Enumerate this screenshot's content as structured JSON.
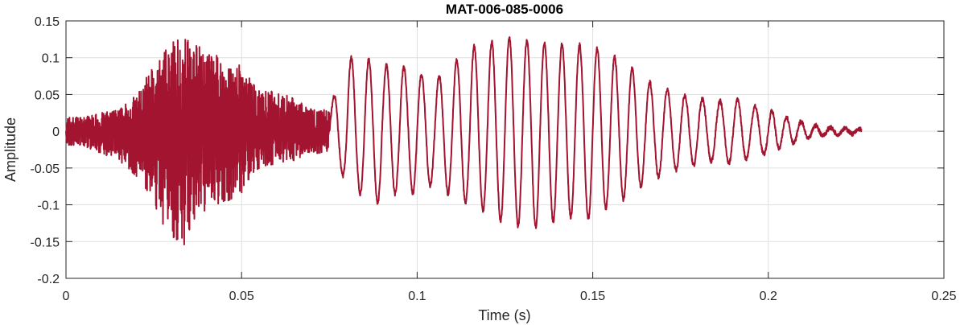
{
  "chart_data": {
    "type": "line",
    "title": "MAT-006-085-0006",
    "xlabel": "Time (s)",
    "ylabel": "Amplitude",
    "xlim": [
      0,
      0.25
    ],
    "ylim": [
      -0.2,
      0.15
    ],
    "xticks": [
      0,
      0.05,
      0.1,
      0.15,
      0.2,
      0.25
    ],
    "xtick_labels": [
      "0",
      "0.05",
      "0.1",
      "0.15",
      "0.2",
      "0.25"
    ],
    "yticks": [
      -0.2,
      -0.15,
      -0.1,
      -0.05,
      0,
      0.05,
      0.1,
      0.15
    ],
    "ytick_labels": [
      "-0.2",
      "-0.15",
      "-0.1",
      "-0.05",
      "0",
      "0.05",
      "0.1",
      "0.15"
    ],
    "grid": true,
    "line_color": "#a2142f",
    "series": [
      {
        "x": [
          0,
          0.005,
          0.01,
          0.015,
          0.02,
          0.025,
          0.03,
          0.032,
          0.035,
          0.037,
          0.04,
          0.045,
          0.05,
          0.055,
          0.06,
          0.065,
          0.07,
          0.075,
          0.08,
          0.085,
          0.09,
          0.095,
          0.1,
          0.105,
          0.11,
          0.115,
          0.12,
          0.125,
          0.13,
          0.135,
          0.14,
          0.145,
          0.15,
          0.155,
          0.16,
          0.165,
          0.17,
          0.175,
          0.18,
          0.185,
          0.19,
          0.195,
          0.2,
          0.205,
          0.21,
          0.215,
          0.22,
          0.2265
        ],
        "y_max": [
          0.02,
          0.02,
          0.025,
          0.03,
          0.05,
          0.09,
          0.12,
          0.135,
          0.13,
          0.12,
          0.11,
          0.1,
          0.09,
          0.055,
          0.055,
          0.045,
          0.03,
          0.03,
          0.1,
          0.1,
          0.09,
          0.09,
          0.08,
          0.07,
          0.09,
          0.115,
          0.12,
          0.128,
          0.125,
          0.12,
          0.118,
          0.118,
          0.115,
          0.105,
          0.09,
          0.07,
          0.06,
          0.05,
          0.045,
          0.04,
          0.045,
          0.035,
          0.03,
          0.02,
          0.012,
          0.006,
          0.004,
          0.003
        ],
        "y_min": [
          -0.02,
          -0.02,
          -0.03,
          -0.04,
          -0.07,
          -0.1,
          -0.15,
          -0.16,
          -0.165,
          -0.12,
          -0.11,
          -0.1,
          -0.085,
          -0.05,
          -0.045,
          -0.04,
          -0.03,
          -0.03,
          -0.07,
          -0.09,
          -0.1,
          -0.08,
          -0.085,
          -0.07,
          -0.09,
          -0.1,
          -0.11,
          -0.125,
          -0.13,
          -0.13,
          -0.12,
          -0.115,
          -0.12,
          -0.1,
          -0.09,
          -0.07,
          -0.06,
          -0.05,
          -0.045,
          -0.04,
          -0.045,
          -0.035,
          -0.03,
          -0.02,
          -0.012,
          -0.006,
          -0.004,
          -0.003
        ]
      }
    ]
  }
}
